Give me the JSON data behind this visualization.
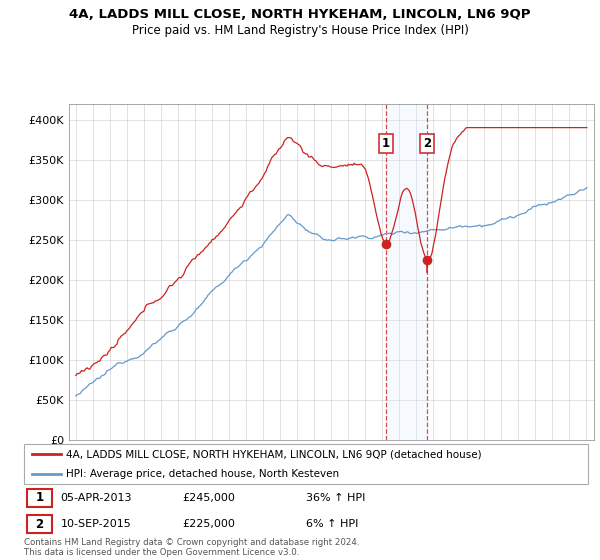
{
  "title": "4A, LADDS MILL CLOSE, NORTH HYKEHAM, LINCOLN, LN6 9QP",
  "subtitle": "Price paid vs. HM Land Registry's House Price Index (HPI)",
  "ylabel_ticks": [
    "£0",
    "£50K",
    "£100K",
    "£150K",
    "£200K",
    "£250K",
    "£300K",
    "£350K",
    "£400K"
  ],
  "ytick_values": [
    0,
    50000,
    100000,
    150000,
    200000,
    250000,
    300000,
    350000,
    400000
  ],
  "ylim": [
    0,
    420000
  ],
  "legend1_label": "4A, LADDS MILL CLOSE, NORTH HYKEHAM, LINCOLN, LN6 9QP (detached house)",
  "legend2_label": "HPI: Average price, detached house, North Kesteven",
  "sale1_date": 2013.27,
  "sale1_price": 245000,
  "sale2_date": 2015.69,
  "sale2_price": 225000,
  "hpi_color": "#6699cc",
  "price_color": "#cc2222",
  "shade_color": "#ddeeff",
  "copyright_text": "Contains HM Land Registry data © Crown copyright and database right 2024.\nThis data is licensed under the Open Government Licence v3.0.",
  "background_color": "#ffffff",
  "grid_color": "#cccccc",
  "sale1_date_str": "05-APR-2013",
  "sale1_price_str": "£245,000",
  "sale1_pct_str": "36% ↑ HPI",
  "sale2_date_str": "10-SEP-2015",
  "sale2_price_str": "£225,000",
  "sale2_pct_str": "6% ↑ HPI"
}
